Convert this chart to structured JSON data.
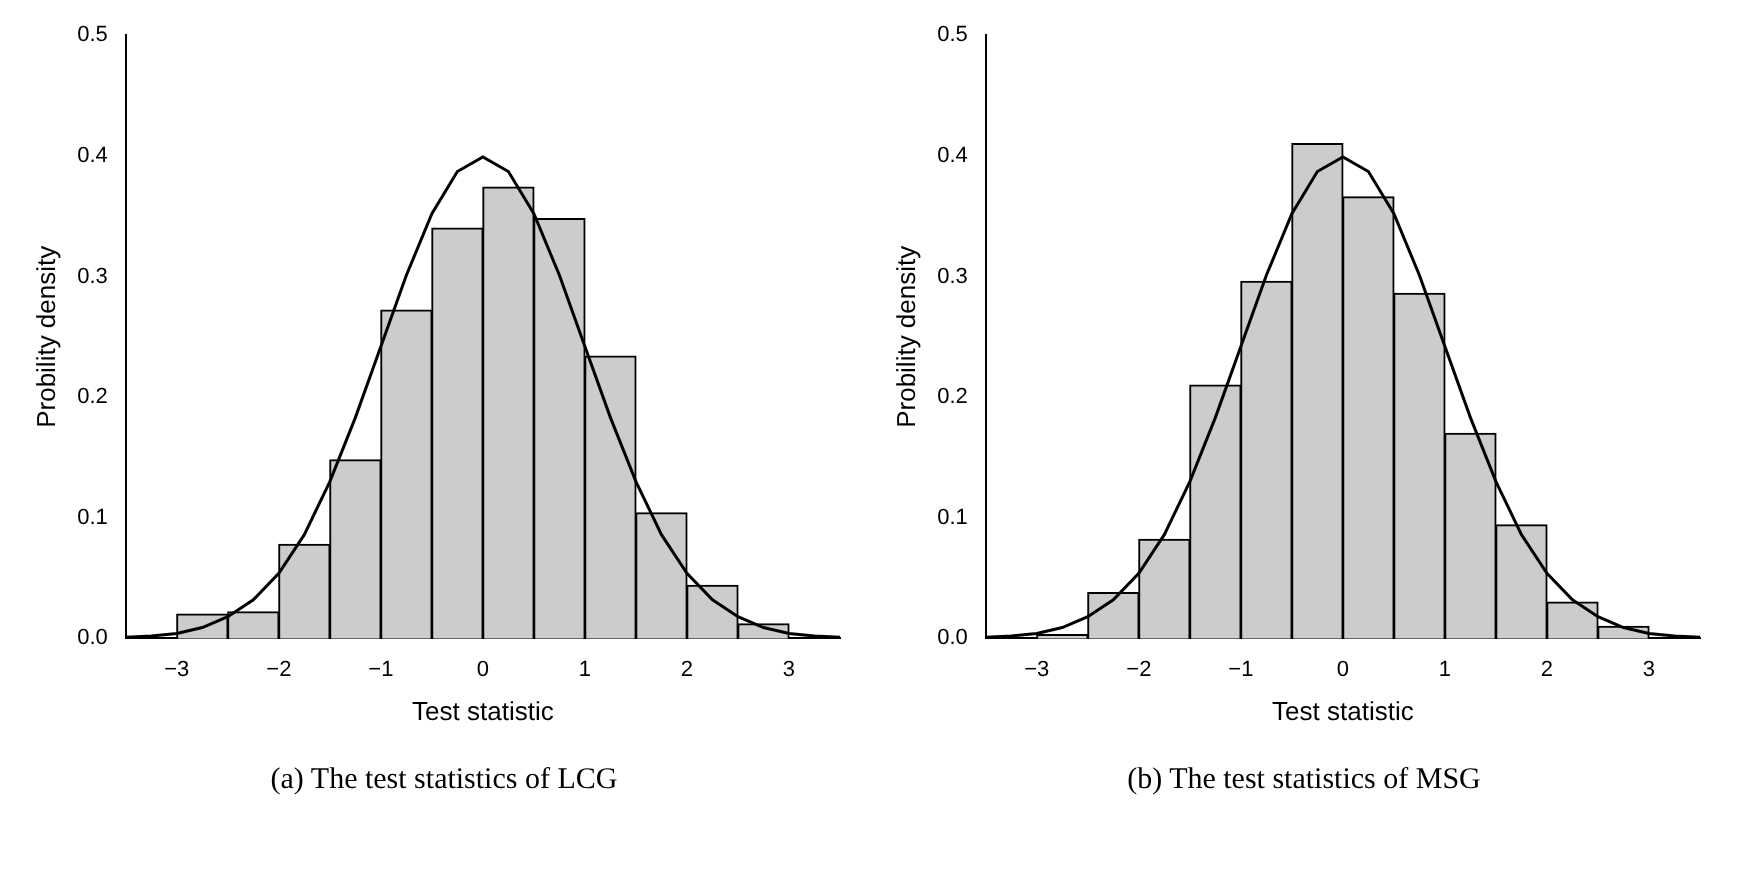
{
  "chart_data": [
    {
      "type": "histogram",
      "xlabel": "Test statistic",
      "ylabel": "Probility density",
      "annotations": [
        "(a) The test statistics of LCG"
      ],
      "xlim": [
        -3.5,
        3.5
      ],
      "xticks": [
        -3,
        -2,
        -1,
        0,
        1,
        2,
        3
      ],
      "ylim": [
        0,
        0.5
      ],
      "yticks": [
        {
          "value": 0,
          "label": "0.0"
        },
        0.1,
        0.2,
        0.3,
        0.4,
        0.5
      ],
      "grid": false,
      "legend": false,
      "series": [
        {
          "type": "histogram",
          "color": "#cccccc",
          "bins": [
            -3,
            -2.5,
            -2,
            -1.5,
            -1,
            -0.5,
            0,
            0.5,
            1,
            1.5,
            2,
            2.5,
            3
          ],
          "values": [
            0.02,
            0.022,
            0.078,
            0.148,
            0.272,
            0.34,
            0.374,
            0.348,
            0.234,
            0.104,
            0.044,
            0.012
          ]
        },
        {
          "type": "line",
          "color": "#000000",
          "x": [
            -3.5,
            -3.25,
            -3,
            -2.75,
            -2.5,
            -2.25,
            -2,
            -1.75,
            -1.5,
            -1.25,
            -1,
            -0.75,
            -0.5,
            -0.25,
            0,
            0.25,
            0.5,
            0.75,
            1,
            1.25,
            1.5,
            1.75,
            2,
            2.25,
            2.5,
            2.75,
            3,
            3.25,
            3.5
          ],
          "values": [
            0.001,
            0.002,
            0.004,
            0.009,
            0.018,
            0.032,
            0.054,
            0.086,
            0.13,
            0.183,
            0.242,
            0.301,
            0.352,
            0.387,
            0.399,
            0.387,
            0.352,
            0.301,
            0.242,
            0.183,
            0.13,
            0.086,
            0.054,
            0.032,
            0.018,
            0.009,
            0.004,
            0.002,
            0.001
          ]
        }
      ]
    },
    {
      "type": "histogram",
      "xlabel": "Test statistic",
      "ylabel": "Probility density",
      "annotations": [
        "(b) The test statistics of MSG"
      ],
      "xlim": [
        -3.5,
        3.5
      ],
      "xticks": [
        -3,
        -2,
        -1,
        0,
        1,
        2,
        3
      ],
      "ylim": [
        0,
        0.5
      ],
      "yticks": [
        {
          "value": 0,
          "label": "0.0"
        },
        0.1,
        0.2,
        0.3,
        0.4,
        0.5
      ],
      "grid": false,
      "legend": false,
      "series": [
        {
          "type": "histogram",
          "color": "#cccccc",
          "bins": [
            -3,
            -2.5,
            -2,
            -1.5,
            -1,
            -0.5,
            0,
            0.5,
            1,
            1.5,
            2,
            2.5,
            3
          ],
          "values": [
            0.003,
            0.038,
            0.082,
            0.21,
            0.296,
            0.41,
            0.366,
            0.286,
            0.17,
            0.094,
            0.03,
            0.01
          ]
        },
        {
          "type": "line",
          "color": "#000000",
          "x": [
            -3.5,
            -3.25,
            -3,
            -2.75,
            -2.5,
            -2.25,
            -2,
            -1.75,
            -1.5,
            -1.25,
            -1,
            -0.75,
            -0.5,
            -0.25,
            0,
            0.25,
            0.5,
            0.75,
            1,
            1.25,
            1.5,
            1.75,
            2,
            2.25,
            2.5,
            2.75,
            3,
            3.25,
            3.5
          ],
          "values": [
            0.001,
            0.002,
            0.004,
            0.009,
            0.018,
            0.032,
            0.054,
            0.086,
            0.13,
            0.183,
            0.242,
            0.301,
            0.352,
            0.387,
            0.399,
            0.387,
            0.352,
            0.301,
            0.242,
            0.183,
            0.13,
            0.086,
            0.054,
            0.032,
            0.018,
            0.009,
            0.004,
            0.002,
            0.001
          ]
        }
      ]
    }
  ]
}
